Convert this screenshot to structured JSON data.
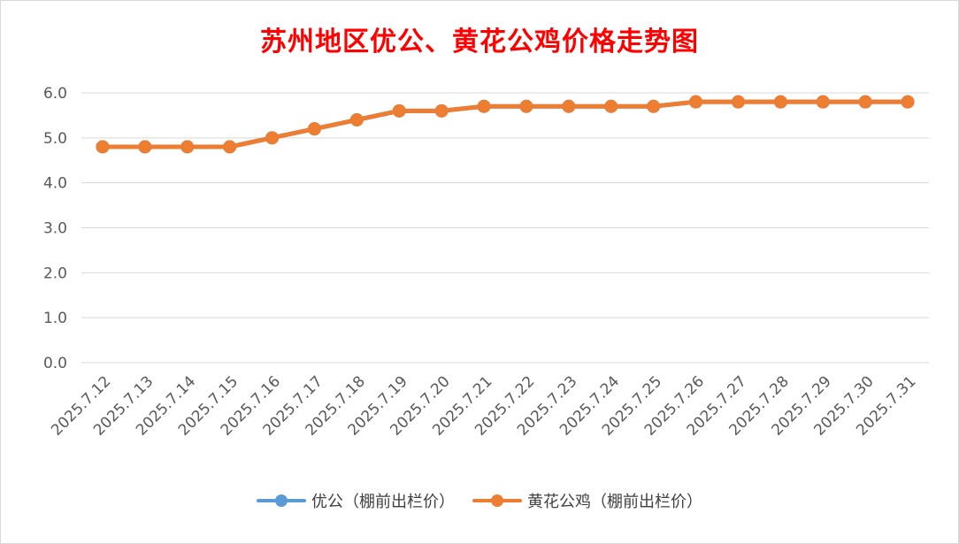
{
  "chart_data": {
    "type": "line",
    "title": "苏州地区优公、黄花公鸡价格走势图",
    "categories": [
      "2025.7.12",
      "2025.7.13",
      "2025.7.14",
      "2025.7.15",
      "2025.7.16",
      "2025.7.17",
      "2025.7.18",
      "2025.7.19",
      "2025.7.20",
      "2025.7.21",
      "2025.7.22",
      "2025.7.23",
      "2025.7.24",
      "2025.7.25",
      "2025.7.26",
      "2025.7.27",
      "2025.7.28",
      "2025.7.29",
      "2025.7.30",
      "2025.7.31"
    ],
    "ylim": [
      0,
      6
    ],
    "yticks": [
      "0.0",
      "1.0",
      "2.0",
      "3.0",
      "4.0",
      "5.0",
      "6.0"
    ],
    "grid": true,
    "legend_position": "bottom",
    "series": [
      {
        "name": "优公（棚前出栏价）",
        "color": "#5b9bd5",
        "values": [
          4.8,
          4.8,
          4.8,
          4.8,
          5.0,
          5.2,
          5.4,
          5.6,
          5.6,
          5.7,
          5.7,
          5.7,
          5.7,
          5.7,
          5.8,
          5.8,
          5.8,
          5.8,
          5.8,
          5.8
        ]
      },
      {
        "name": "黄花公鸡（棚前出栏价）",
        "color": "#ed7d31",
        "values": [
          4.8,
          4.8,
          4.8,
          4.8,
          5.0,
          5.2,
          5.4,
          5.6,
          5.6,
          5.7,
          5.7,
          5.7,
          5.7,
          5.7,
          5.8,
          5.8,
          5.8,
          5.8,
          5.8,
          5.8
        ]
      }
    ]
  }
}
